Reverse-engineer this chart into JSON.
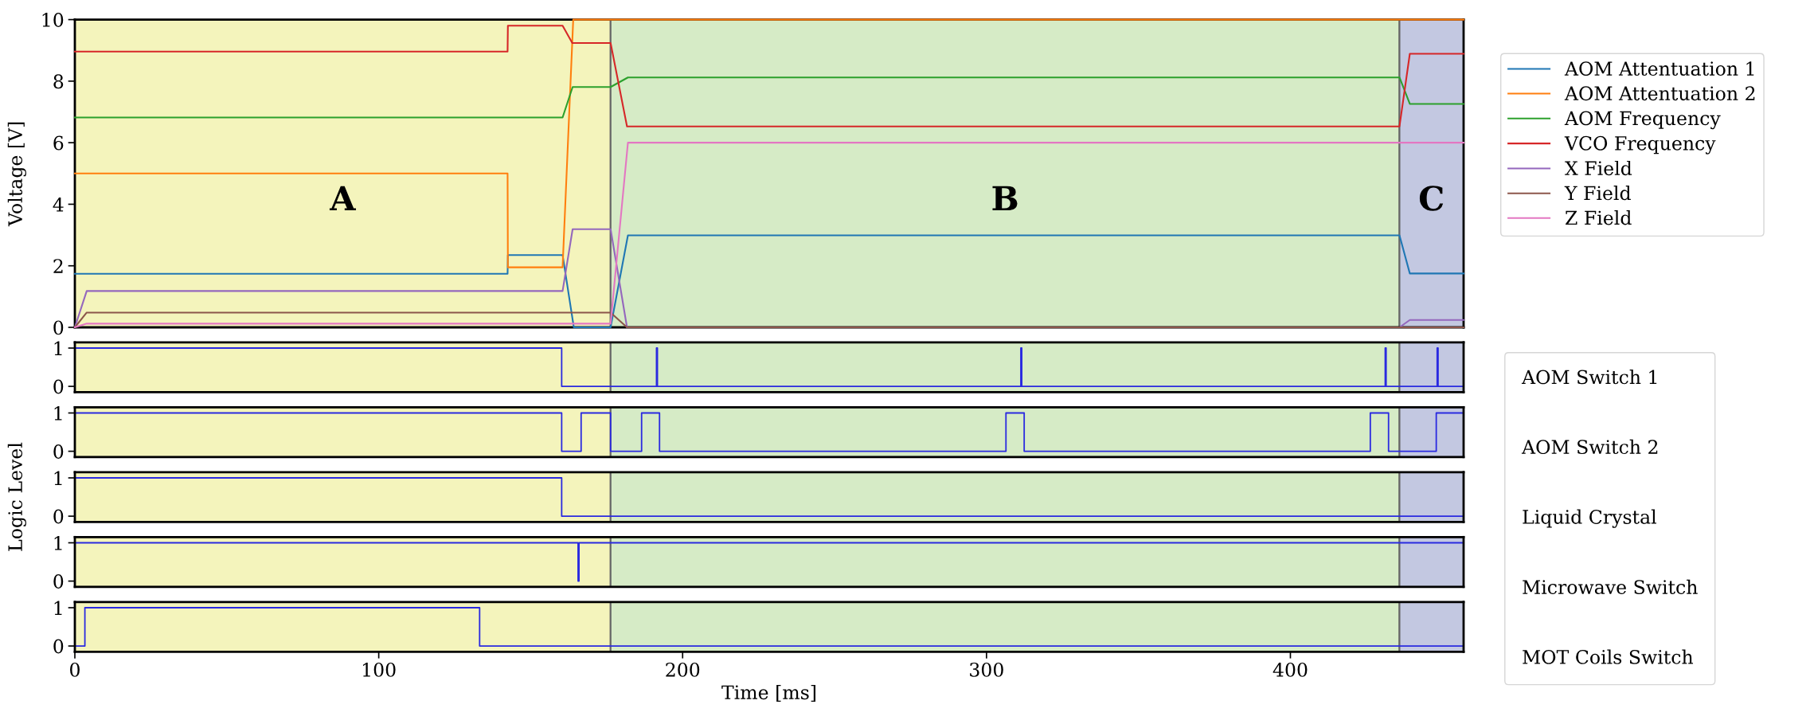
{
  "chart_data": [
    {
      "type": "line",
      "ylabel": "Voltage [V]",
      "xlim": [
        0,
        457
      ],
      "ylim": [
        0,
        10
      ],
      "yticks": [
        0,
        2,
        4,
        6,
        8,
        10
      ],
      "tick_labels": "y",
      "legend": "top right",
      "bands": [
        {
          "axis": "x",
          "from": 0,
          "to": 176.3,
          "label": "A",
          "color": "#f4f4bc"
        },
        {
          "axis": "x",
          "from": 176.3,
          "to": 435.9,
          "label": "B",
          "color": "#d6ebc6"
        },
        {
          "axis": "x",
          "from": 435.9,
          "to": 457,
          "label": "C",
          "color": "#c3c8e1"
        }
      ],
      "series": [
        {
          "name": "AOM Attentuation 1",
          "color": "#1f77b4",
          "x": [
            0,
            142.4,
            142.5,
            160.5,
            164.2,
            176.3,
            182,
            435.9,
            439.3,
            457
          ],
          "values": [
            1.74,
            1.74,
            2.35,
            2.35,
            0,
            0,
            2.99,
            2.99,
            1.75,
            1.75
          ]
        },
        {
          "name": "AOM Attentuation 2",
          "color": "#ff7f0e",
          "x": [
            0,
            142.4,
            142.5,
            160.5,
            164,
            457
          ],
          "values": [
            5.0,
            5.0,
            1.95,
            1.95,
            10,
            10
          ]
        },
        {
          "name": "AOM Frequency",
          "color": "#2ca02c",
          "x": [
            0,
            160.5,
            163.8,
            176.3,
            182,
            435.9,
            439.3,
            457
          ],
          "values": [
            6.82,
            6.82,
            7.81,
            7.81,
            8.12,
            8.12,
            7.26,
            7.26
          ]
        },
        {
          "name": "VCO Frequency",
          "color": "#d62728",
          "x": [
            0,
            142.4,
            142.5,
            160.5,
            163.7,
            176.3,
            181.7,
            435.9,
            439.3,
            457
          ],
          "values": [
            8.96,
            8.96,
            9.8,
            9.8,
            9.24,
            9.24,
            6.53,
            6.53,
            8.89,
            8.89
          ]
        },
        {
          "name": "X Field",
          "color": "#9467bd",
          "x": [
            0,
            3.9,
            160.5,
            163.8,
            176.3,
            181.7,
            435.9,
            439.3,
            457
          ],
          "values": [
            0,
            1.18,
            1.18,
            3.19,
            3.19,
            0,
            0,
            0.24,
            0.24
          ]
        },
        {
          "name": "Y Field",
          "color": "#8c564b",
          "x": [
            0,
            3.9,
            176.3,
            181.7,
            457
          ],
          "values": [
            0,
            0.48,
            0.48,
            0,
            0
          ]
        },
        {
          "name": "Z Field",
          "color": "#e377c2",
          "x": [
            0,
            3.9,
            176.3,
            182,
            457
          ],
          "values": [
            0,
            0.12,
            0.12,
            6.0,
            6.0
          ]
        }
      ]
    },
    {
      "type": "step",
      "xlim": [
        0,
        457
      ],
      "ylim": [
        -0.15,
        1.15
      ],
      "yticks": [
        0,
        1
      ],
      "tick_labels": "y",
      "legend": "right",
      "bands": [
        {
          "axis": "x",
          "from": 0,
          "to": 176.3,
          "color": "#f4f4bc"
        },
        {
          "axis": "x",
          "from": 176.3,
          "to": 435.9,
          "color": "#d6ebc6"
        },
        {
          "axis": "x",
          "from": 435.9,
          "to": 457,
          "color": "#c3c8e1"
        }
      ],
      "series": [
        {
          "name": "AOM Switch 1",
          "color": "#2a2ae0",
          "x": [
            0,
            160.2,
            191.4,
            191.7,
            311.3,
            311.6,
            431.2,
            431.5,
            448.3,
            448.6,
            457
          ],
          "values": [
            1,
            0,
            1,
            0,
            1,
            0,
            1,
            0,
            1,
            0,
            0
          ]
        }
      ]
    },
    {
      "type": "step",
      "xlim": [
        0,
        457
      ],
      "ylim": [
        -0.15,
        1.15
      ],
      "yticks": [
        0,
        1
      ],
      "tick_labels": "y",
      "legend": "right",
      "bands": [
        {
          "axis": "x",
          "from": 0,
          "to": 176.3,
          "color": "#f4f4bc"
        },
        {
          "axis": "x",
          "from": 176.3,
          "to": 435.9,
          "color": "#d6ebc6"
        },
        {
          "axis": "x",
          "from": 435.9,
          "to": 457,
          "color": "#c3c8e1"
        }
      ],
      "series": [
        {
          "name": "AOM Switch 2",
          "color": "#2a2ae0",
          "x": [
            0,
            160.2,
            166.6,
            176.3,
            186.5,
            192.4,
            306.4,
            312.4,
            426.3,
            432.3,
            448.0,
            457
          ],
          "values": [
            1,
            0,
            1,
            0,
            1,
            0,
            1,
            0,
            1,
            0,
            1,
            1
          ]
        }
      ]
    },
    {
      "type": "step",
      "ylabel": "Logic Level",
      "xlim": [
        0,
        457
      ],
      "ylim": [
        -0.15,
        1.15
      ],
      "yticks": [
        0,
        1
      ],
      "tick_labels": "y",
      "legend": "right",
      "bands": [
        {
          "axis": "x",
          "from": 0,
          "to": 176.3,
          "color": "#f4f4bc"
        },
        {
          "axis": "x",
          "from": 176.3,
          "to": 435.9,
          "color": "#d6ebc6"
        },
        {
          "axis": "x",
          "from": 435.9,
          "to": 457,
          "color": "#c3c8e1"
        }
      ],
      "series": [
        {
          "name": "Liquid Crystal",
          "color": "#2a2ae0",
          "x": [
            0,
            160.2,
            457
          ],
          "values": [
            1,
            0,
            0
          ]
        }
      ]
    },
    {
      "type": "step",
      "xlim": [
        0,
        457
      ],
      "ylim": [
        -0.15,
        1.15
      ],
      "yticks": [
        0,
        1
      ],
      "tick_labels": "y",
      "legend": "right",
      "bands": [
        {
          "axis": "x",
          "from": 0,
          "to": 176.3,
          "color": "#f4f4bc"
        },
        {
          "axis": "x",
          "from": 176.3,
          "to": 435.9,
          "color": "#d6ebc6"
        },
        {
          "axis": "x",
          "from": 435.9,
          "to": 457,
          "color": "#c3c8e1"
        }
      ],
      "series": [
        {
          "name": "Microwave Switch",
          "color": "#2a2ae0",
          "x": [
            0,
            165.6,
            165.9,
            457
          ],
          "values": [
            1,
            0,
            1,
            1
          ]
        }
      ]
    },
    {
      "type": "step",
      "xlabel": "Time [ms]",
      "xlim": [
        0,
        457
      ],
      "xticks": [
        0,
        100,
        200,
        300,
        400
      ],
      "ylim": [
        -0.15,
        1.15
      ],
      "yticks": [
        0,
        1
      ],
      "legend": "right",
      "bands": [
        {
          "axis": "x",
          "from": 0,
          "to": 176.3,
          "color": "#f4f4bc"
        },
        {
          "axis": "x",
          "from": 176.3,
          "to": 435.9,
          "color": "#d6ebc6"
        },
        {
          "axis": "x",
          "from": 435.9,
          "to": 457,
          "color": "#c3c8e1"
        }
      ],
      "series": [
        {
          "name": "MOT Coils Switch",
          "color": "#2a2ae0",
          "x": [
            0,
            3.3,
            133.2,
            457
          ],
          "values": [
            0,
            1,
            0,
            0
          ]
        }
      ]
    }
  ]
}
